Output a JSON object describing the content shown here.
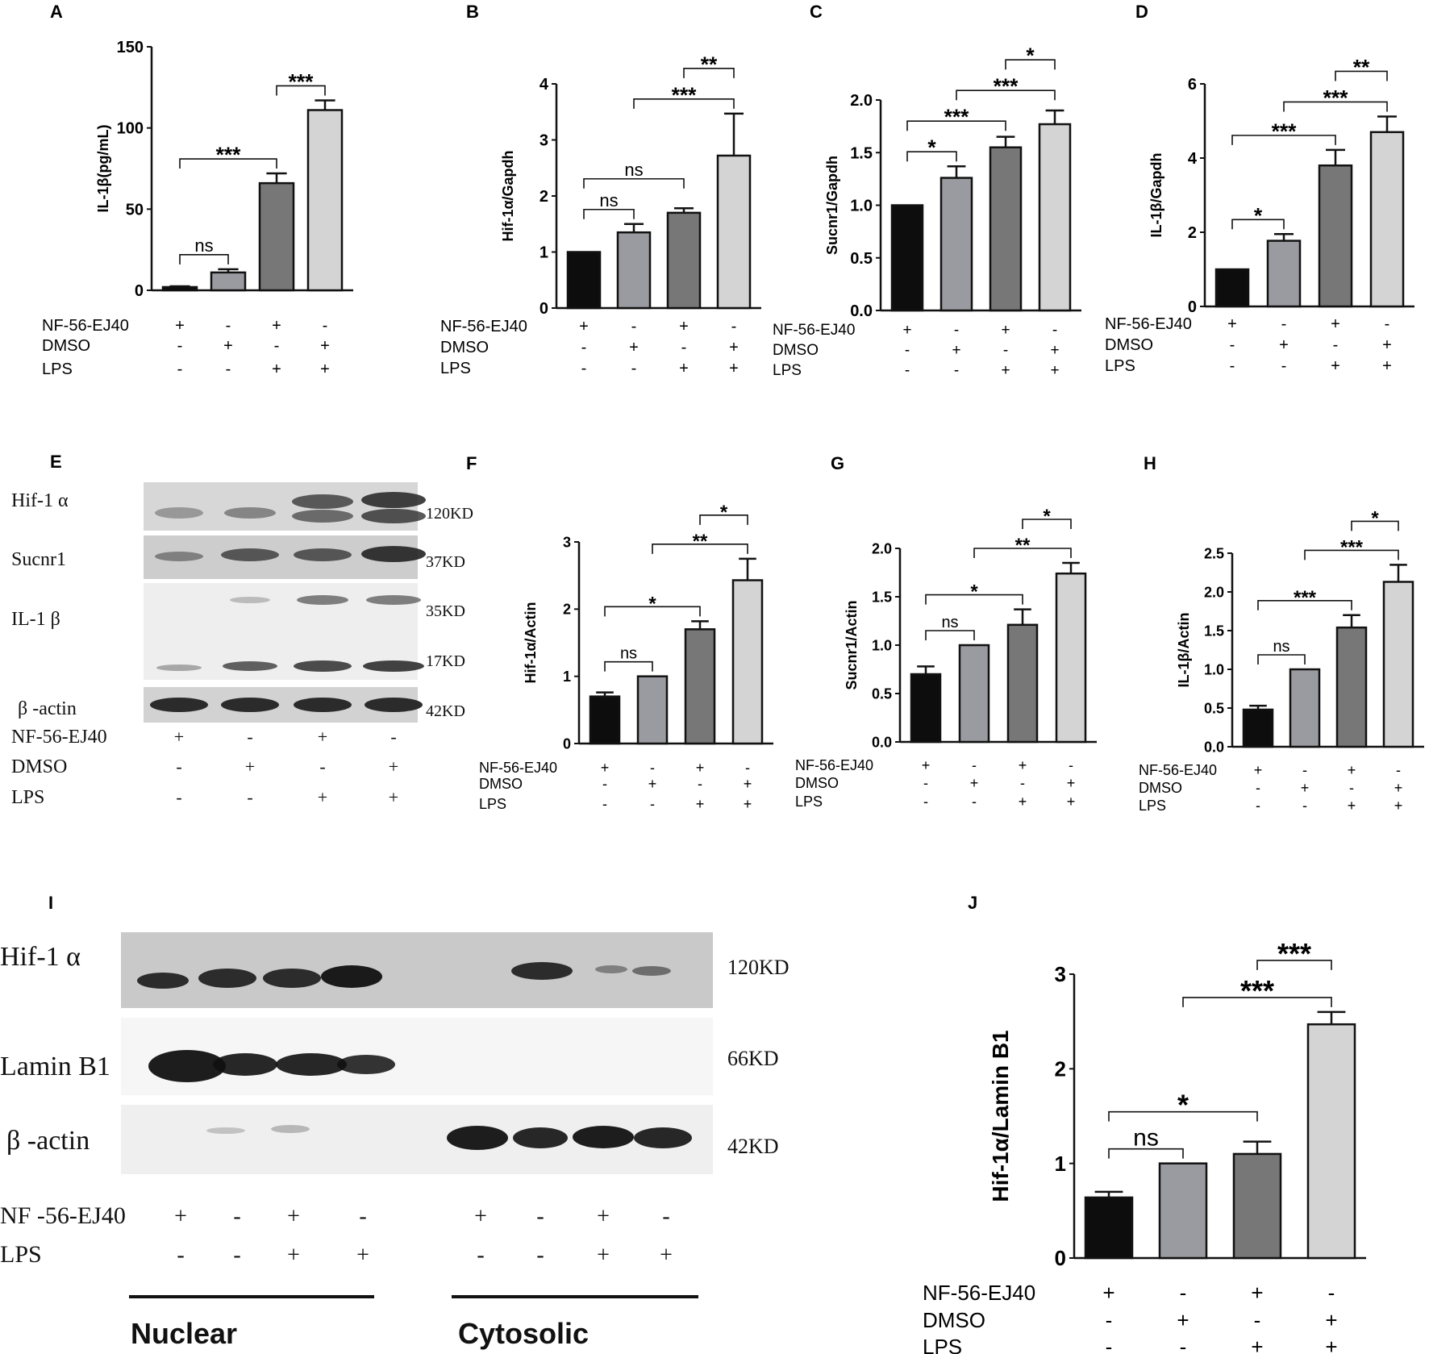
{
  "treatments": {
    "rows": [
      "NF-56-EJ40",
      "DMSO",
      "LPS"
    ],
    "signs": [
      [
        "+",
        "-",
        "+",
        "-"
      ],
      [
        "-",
        "+",
        "-",
        "+"
      ],
      [
        "-",
        "-",
        "+",
        "+"
      ]
    ]
  },
  "chart_data": [
    {
      "panel": "A",
      "type": "bar",
      "ylabel": "IL-1β(pg/mL)",
      "ylim": [
        0,
        150
      ],
      "yticks": [
        "0",
        "50",
        "100",
        "150"
      ],
      "values": [
        2,
        11,
        66,
        111
      ],
      "errors": [
        0.5,
        2,
        6,
        6
      ],
      "colors": [
        "#0d0d0d",
        "#9a9ba0",
        "#777777",
        "#d4d4d4"
      ],
      "brackets": [
        {
          "from": 0,
          "to": 1,
          "label": "ns"
        },
        {
          "from": 0,
          "to": 2,
          "label": "***"
        },
        {
          "from": 2,
          "to": 3,
          "label": "***"
        }
      ]
    },
    {
      "panel": "B",
      "type": "bar",
      "ylabel": "Hif-1α/Gapdh",
      "ylim": [
        0,
        4
      ],
      "yticks": [
        "0",
        "1",
        "2",
        "3",
        "4"
      ],
      "values": [
        1,
        1.35,
        1.7,
        2.72
      ],
      "errors": [
        0,
        0.15,
        0.08,
        0.75
      ],
      "colors": [
        "#0d0d0d",
        "#9a9ba0",
        "#777777",
        "#d4d4d4"
      ],
      "brackets": [
        {
          "from": 0,
          "to": 1,
          "label": "ns"
        },
        {
          "from": 0,
          "to": 2,
          "label": "ns"
        },
        {
          "from": 1,
          "to": 3,
          "label": "***"
        },
        {
          "from": 2,
          "to": 3,
          "label": "**"
        }
      ]
    },
    {
      "panel": "C",
      "type": "bar",
      "ylabel": "Sucnr1/Gapdh",
      "ylim": [
        0,
        2
      ],
      "yticks": [
        "0.0",
        "0.5",
        "1.0",
        "1.5",
        "2.0"
      ],
      "values": [
        1,
        1.26,
        1.55,
        1.77
      ],
      "errors": [
        0,
        0.11,
        0.1,
        0.13
      ],
      "colors": [
        "#0d0d0d",
        "#9a9ba0",
        "#777777",
        "#d4d4d4"
      ],
      "brackets": [
        {
          "from": 0,
          "to": 1,
          "label": "*"
        },
        {
          "from": 0,
          "to": 2,
          "label": "***"
        },
        {
          "from": 1,
          "to": 3,
          "label": "***"
        },
        {
          "from": 2,
          "to": 3,
          "label": "*"
        }
      ]
    },
    {
      "panel": "D",
      "type": "bar",
      "ylabel": "IL-1β/Gapdh",
      "ylim": [
        0,
        6
      ],
      "yticks": [
        "0",
        "2",
        "4",
        "6"
      ],
      "values": [
        1,
        1.77,
        3.8,
        4.7
      ],
      "errors": [
        0,
        0.18,
        0.42,
        0.42
      ],
      "colors": [
        "#0d0d0d",
        "#9a9ba0",
        "#777777",
        "#d4d4d4"
      ],
      "brackets": [
        {
          "from": 0,
          "to": 1,
          "label": "*"
        },
        {
          "from": 0,
          "to": 2,
          "label": "***"
        },
        {
          "from": 1,
          "to": 3,
          "label": "***"
        },
        {
          "from": 2,
          "to": 3,
          "label": "**"
        }
      ]
    },
    {
      "panel": "F",
      "type": "bar",
      "ylabel": "Hif-1α/Actin",
      "ylim": [
        0,
        3
      ],
      "yticks": [
        "0",
        "1",
        "2",
        "3"
      ],
      "values": [
        0.7,
        1,
        1.7,
        2.43
      ],
      "errors": [
        0.06,
        0,
        0.12,
        0.32
      ],
      "colors": [
        "#0d0d0d",
        "#9a9ba0",
        "#777777",
        "#d4d4d4"
      ],
      "brackets": [
        {
          "from": 0,
          "to": 1,
          "label": "ns"
        },
        {
          "from": 0,
          "to": 2,
          "label": "*"
        },
        {
          "from": 1,
          "to": 3,
          "label": "**"
        },
        {
          "from": 2,
          "to": 3,
          "label": "*"
        }
      ]
    },
    {
      "panel": "G",
      "type": "bar",
      "ylabel": "Sucnr1/Actin",
      "ylim": [
        0,
        2
      ],
      "yticks": [
        "0.0",
        "0.5",
        "1.0",
        "1.5",
        "2.0"
      ],
      "values": [
        0.7,
        1,
        1.21,
        1.74
      ],
      "errors": [
        0.08,
        0,
        0.16,
        0.11
      ],
      "colors": [
        "#0d0d0d",
        "#9a9ba0",
        "#777777",
        "#d4d4d4"
      ],
      "brackets": [
        {
          "from": 0,
          "to": 1,
          "label": "ns"
        },
        {
          "from": 0,
          "to": 2,
          "label": "*"
        },
        {
          "from": 1,
          "to": 3,
          "label": "**"
        },
        {
          "from": 2,
          "to": 3,
          "label": "*"
        }
      ]
    },
    {
      "panel": "H",
      "type": "bar",
      "ylabel": "IL-1β/Actin",
      "ylim": [
        0,
        2.5
      ],
      "yticks": [
        "0.0",
        "0.5",
        "1.0",
        "1.5",
        "2.0",
        "2.5"
      ],
      "values": [
        0.48,
        1,
        1.54,
        2.13
      ],
      "errors": [
        0.05,
        0,
        0.16,
        0.22
      ],
      "colors": [
        "#0d0d0d",
        "#9a9ba0",
        "#777777",
        "#d4d4d4"
      ],
      "brackets": [
        {
          "from": 0,
          "to": 1,
          "label": "ns"
        },
        {
          "from": 0,
          "to": 2,
          "label": "***"
        },
        {
          "from": 1,
          "to": 3,
          "label": "***"
        },
        {
          "from": 2,
          "to": 3,
          "label": "*"
        }
      ]
    },
    {
      "panel": "J",
      "type": "bar",
      "ylabel": "Hif-1α/Lamin B1",
      "ylim": [
        0,
        3
      ],
      "yticks": [
        "0",
        "1",
        "2",
        "3"
      ],
      "values": [
        0.64,
        1,
        1.1,
        2.47
      ],
      "errors": [
        0.06,
        0,
        0.13,
        0.13
      ],
      "colors": [
        "#0d0d0d",
        "#9a9ba0",
        "#777777",
        "#d4d4d4"
      ],
      "brackets": [
        {
          "from": 0,
          "to": 1,
          "label": "ns"
        },
        {
          "from": 0,
          "to": 2,
          "label": "*"
        },
        {
          "from": 1,
          "to": 3,
          "label": "***"
        },
        {
          "from": 2,
          "to": 3,
          "label": "***"
        }
      ]
    }
  ],
  "blots": {
    "E": {
      "panel": "E",
      "proteins": [
        "Hif-1 α",
        "Sucnr1",
        "IL-1 β",
        "β -actin"
      ],
      "weights": [
        "120KD",
        "37KD",
        "35KD",
        "17KD",
        "42KD"
      ],
      "rows": [
        "NF-56-EJ40",
        "DMSO",
        "LPS"
      ]
    },
    "I": {
      "panel": "I",
      "proteins": [
        "Hif-1 α",
        "Lamin B1",
        "β -actin"
      ],
      "weights": [
        "120KD",
        "66KD",
        "42KD"
      ],
      "rows": [
        "NF -56-EJ40",
        "LPS"
      ],
      "signs": [
        [
          "+",
          "-",
          "+",
          "-",
          "+",
          "-",
          "+",
          "-"
        ],
        [
          "-",
          "-",
          "+",
          "+",
          "-",
          "-",
          "+",
          "+"
        ]
      ],
      "groups": [
        "Nuclear",
        "Cytosolic"
      ]
    }
  }
}
